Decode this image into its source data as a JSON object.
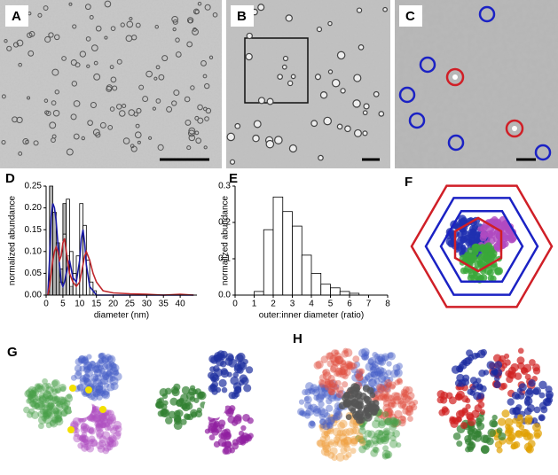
{
  "panels": {
    "labels": [
      "A",
      "B",
      "C",
      "D",
      "E",
      "F",
      "G",
      "H"
    ]
  },
  "chart_data": [
    {
      "type": "histogram",
      "xlabel": "diameter (nm)",
      "ylabel": "normalized abundance",
      "xlim": [
        0,
        45
      ],
      "xticks": [
        0,
        5,
        10,
        15,
        20,
        25,
        30,
        35,
        40
      ],
      "ylim": [
        0,
        0.25
      ],
      "yticks": [
        {
          "value": 0,
          "label": "0.00"
        },
        {
          "value": 0.05,
          "label": "0.05"
        },
        {
          "value": 0.1,
          "label": "0.10"
        },
        {
          "value": 0.15,
          "label": "0.15"
        },
        {
          "value": 0.2,
          "label": "0.20"
        },
        {
          "value": 0.25,
          "label": "0.25"
        }
      ],
      "series": [
        {
          "color": "#b4b4b4",
          "bins": [
            1,
            2,
            3,
            4,
            5,
            6,
            7,
            8
          ],
          "values": [
            0.25,
            0.19,
            0.12,
            0.06,
            0.21,
            0.09,
            0.02
          ]
        },
        {
          "color": "#ffffff",
          "bins": [
            4,
            5,
            6,
            7,
            8,
            9,
            10,
            11,
            12,
            13,
            14,
            15
          ],
          "values": [
            0.03,
            0.14,
            0.22,
            0.1,
            0.05,
            0.09,
            0.21,
            0.16,
            0.08,
            0.03,
            0.01
          ]
        }
      ],
      "lines": [
        {
          "color": "#1a1aa6",
          "x": [
            0.5,
            1,
            1.5,
            2,
            2.5,
            3,
            3.5,
            4,
            4.5,
            5,
            5.5,
            6,
            7,
            8,
            9,
            10,
            10.5,
            11,
            11.5,
            12,
            13,
            14,
            15,
            17,
            20,
            25,
            30,
            35,
            40,
            44
          ],
          "values": [
            0,
            0.08,
            0.18,
            0.21,
            0.2,
            0.17,
            0.12,
            0.07,
            0.03,
            0.02,
            0.03,
            0.05,
            0.08,
            0.04,
            0.03,
            0.08,
            0.13,
            0.15,
            0.12,
            0.07,
            0.02,
            0.01,
            0,
            0,
            0,
            0,
            0,
            0,
            0,
            0
          ]
        },
        {
          "color": "#c0282d",
          "x": [
            0.5,
            1,
            1.5,
            2,
            2.5,
            3,
            3.5,
            4,
            4.5,
            5,
            5.5,
            6,
            7,
            8,
            9,
            10,
            10.5,
            11,
            11.5,
            12,
            13,
            14,
            15,
            17,
            20,
            25,
            30,
            35,
            40,
            44
          ],
          "values": [
            0,
            0.02,
            0.05,
            0.08,
            0.1,
            0.11,
            0.1,
            0.08,
            0.09,
            0.12,
            0.13,
            0.1,
            0.05,
            0.03,
            0.02,
            0.03,
            0.05,
            0.07,
            0.09,
            0.1,
            0.08,
            0.05,
            0.03,
            0.01,
            0.005,
            0.003,
            0.002,
            0,
            0.002,
            0
          ]
        }
      ]
    },
    {
      "type": "histogram",
      "xlabel": "outer:inner diameter (ratio)",
      "ylabel": "normalized abundance",
      "xlim": [
        0,
        8
      ],
      "xticks": [
        0,
        1,
        2,
        3,
        4,
        5,
        6,
        7,
        8
      ],
      "ylim": [
        0,
        0.3
      ],
      "yticks": [
        {
          "value": 0,
          "label": "0.0"
        },
        0.1,
        0.2,
        0.3
      ],
      "series": [
        {
          "color": "#ffffff",
          "bins": [
            1,
            1.5,
            2,
            2.5,
            3,
            3.5,
            4,
            4.5,
            5,
            5.5,
            6,
            6.5
          ],
          "values": [
            0.01,
            0.18,
            0.27,
            0.23,
            0.19,
            0.11,
            0.06,
            0.03,
            0.02,
            0.01,
            0.005
          ]
        }
      ]
    }
  ]
}
